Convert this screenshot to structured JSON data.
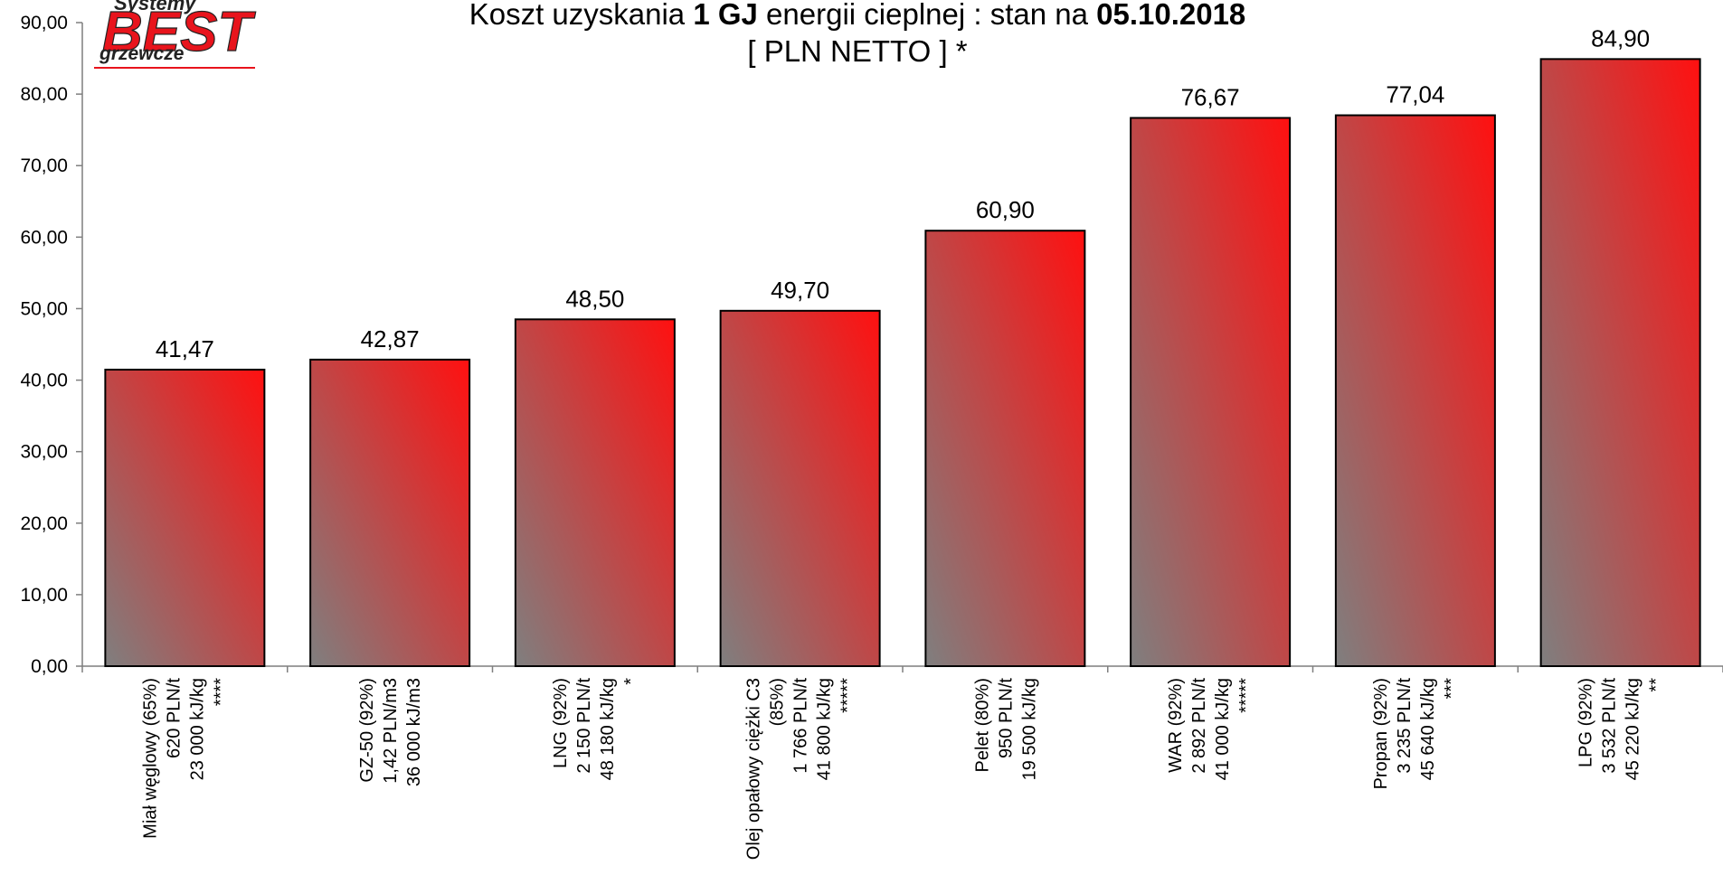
{
  "title": {
    "line1": {
      "part1": "Koszt uzyskania ",
      "part2": "1 GJ",
      "part3": " energii cieplnej : stan na ",
      "part4": "05.10.2018"
    },
    "line2": "[ PLN NETTO ] *"
  },
  "logo": {
    "top": "Systemy",
    "middle": "BEST",
    "bottom": "grzewcze"
  },
  "colors": {
    "bar_gradient_start": "#7f7f7f",
    "bar_gradient_end": "#ff1010",
    "axis": "#7f7f7f",
    "logo_red": "#e8141c",
    "logo_dark": "#222222"
  },
  "chart_data": {
    "type": "bar",
    "title": "Koszt uzyskania 1 GJ energii cieplnej : stan na 05.10.2018 [ PLN NETTO ] *",
    "ylim": [
      0,
      90
    ],
    "y_ticks": [
      "0,00",
      "10,00",
      "20,00",
      "30,00",
      "40,00",
      "50,00",
      "60,00",
      "70,00",
      "80,00",
      "90,00"
    ],
    "grid": false,
    "legend": "none",
    "categories": [
      [
        "Miał węglowy (65%)",
        "620 PLN/t",
        "23 000 kJ/kg",
        "****"
      ],
      [
        "GZ-50 (92%)",
        "1,42 PLN/m3",
        "36 000 kJ/m3"
      ],
      [
        "LNG (92%)",
        "2 150 PLN/t",
        "48 180 kJ/kg",
        "*"
      ],
      [
        "Olej opałowy ciężki C3",
        "(85%)",
        "1 766 PLN/t",
        "41 800 kJ/kg",
        "*****"
      ],
      [
        "Pelet (80%)",
        "950 PLN/t",
        "19 500 kJ/kg"
      ],
      [
        "WAR (92%)",
        "2 892 PLN/t",
        "41 000 kJ/kg",
        "*****"
      ],
      [
        "Propan (92%)",
        "3 235 PLN/t",
        "45 640 kJ/kg",
        "***"
      ],
      [
        "LPG (92%)",
        "3 532 PLN/t",
        "45 220 kJ/kg",
        "**"
      ]
    ],
    "values": [
      41.47,
      42.87,
      48.5,
      49.7,
      60.9,
      76.67,
      77.04,
      84.9
    ],
    "value_labels": [
      "41,47",
      "42,87",
      "48,50",
      "49,70",
      "60,90",
      "76,67",
      "77,04",
      "84,90"
    ]
  }
}
